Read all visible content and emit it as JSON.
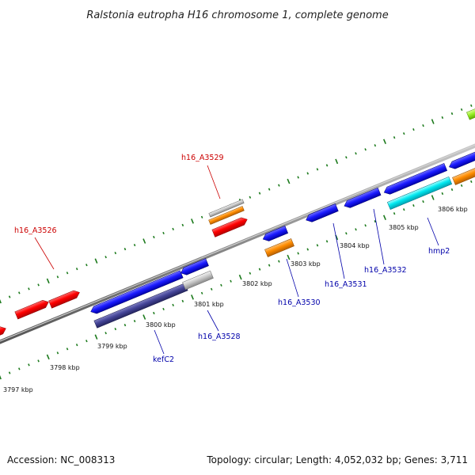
{
  "title": "Ralstonia eutropha H16 chromosome 1, complete genome",
  "footer": {
    "accession": "Accession: NC_008313",
    "summary": "Topology: circular; Length: 4,052,032 bp; Genes: 3,711"
  },
  "colors": {
    "backbone": "#8a8a8a",
    "ticks": "#1c7a1c",
    "forward_label": "#cc0000",
    "reverse_label": "#0000aa",
    "red": "#ff0000",
    "blue": "#1a1aff",
    "orange": "#ff8c00",
    "cyan": "#00e8f0",
    "grey": "#bdbdbd",
    "navy": "#404096",
    "lime": "#9aef2a"
  },
  "kbp_labels": [
    "3797 kbp",
    "3798 kbp",
    "3799 kbp",
    "3800 kbp",
    "3801 kbp",
    "3802 kbp",
    "3803 kbp",
    "3804 kbp",
    "3805 kbp",
    "3806 kbp"
  ],
  "gene_labels": {
    "h16_A3526": "h16_A3526",
    "h16_A3529": "h16_A3529",
    "kefC2": "kefC2",
    "h16_A3528": "h16_A3528",
    "h16_A3530": "h16_A3530",
    "h16_A3531": "h16_A3531",
    "h16_A3532": "h16_A3532",
    "hmp2": "hmp2"
  }
}
